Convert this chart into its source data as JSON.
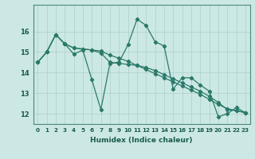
{
  "title": "",
  "xlabel": "Humidex (Indice chaleur)",
  "bg_color": "#cce8e4",
  "line_color": "#2a7a6a",
  "grid_color": "#aacfca",
  "x_labels": [
    "0",
    "1",
    "2",
    "3",
    "4",
    "5",
    "6",
    "7",
    "8",
    "9",
    "10",
    "11",
    "12",
    "13",
    "14",
    "15",
    "16",
    "17",
    "18",
    "19",
    "20",
    "21",
    "22",
    "23"
  ],
  "series": [
    [
      14.5,
      15.0,
      15.85,
      15.4,
      14.9,
      15.1,
      13.65,
      12.2,
      14.45,
      14.5,
      15.35,
      16.6,
      16.3,
      15.5,
      15.3,
      13.2,
      13.75,
      13.75,
      13.4,
      13.1,
      11.85,
      12.0,
      12.3,
      12.05
    ],
    [
      14.5,
      15.0,
      15.85,
      15.4,
      15.2,
      15.15,
      15.1,
      15.05,
      14.85,
      14.7,
      14.55,
      14.35,
      14.15,
      13.95,
      13.75,
      13.55,
      13.35,
      13.15,
      12.95,
      12.7,
      12.45,
      12.25,
      12.15,
      12.05
    ],
    [
      14.5,
      15.0,
      15.85,
      15.4,
      15.2,
      15.15,
      15.1,
      14.95,
      14.5,
      14.45,
      14.4,
      14.35,
      14.25,
      14.1,
      13.9,
      13.7,
      13.5,
      13.3,
      13.1,
      12.85,
      12.55,
      12.2,
      12.15,
      12.05
    ]
  ],
  "ylim": [
    11.5,
    17.3
  ],
  "yticks": [
    12,
    13,
    14,
    15,
    16
  ],
  "yticklabel_fontsize": 6.0,
  "xticklabel_fontsize": 5.2,
  "xlabel_fontsize": 6.5,
  "spine_color": "#4a8a80",
  "tick_color": "#1a5a50",
  "marker": "D",
  "markersize": 2.2,
  "linewidth": 0.9
}
